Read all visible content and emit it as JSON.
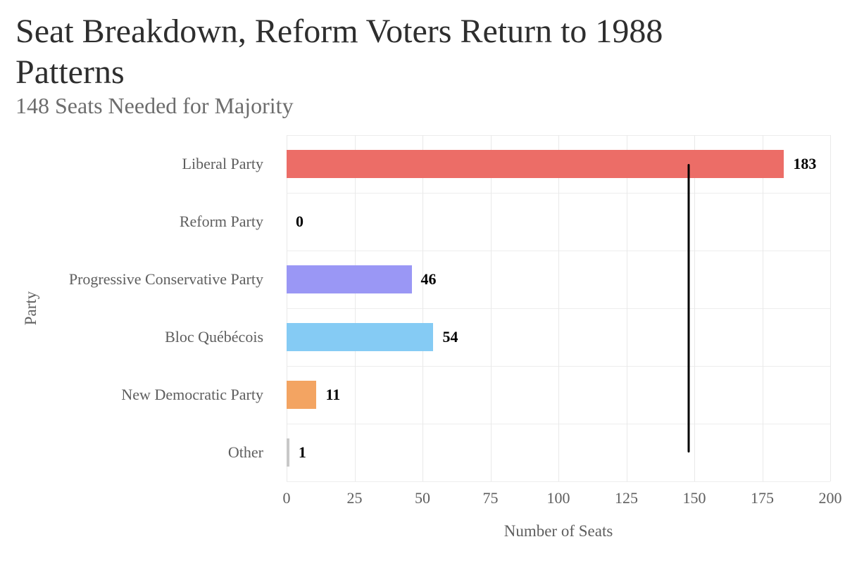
{
  "chart_data": {
    "type": "bar",
    "orientation": "horizontal",
    "title": "Seat Breakdown, Reform Voters Return to 1988 Patterns",
    "subtitle": "148 Seats Needed for Majority",
    "xlabel": "Number of Seats",
    "ylabel": "Party",
    "categories": [
      "Liberal Party",
      "Reform Party",
      "Progressive Conservative Party",
      "Bloc Québécois",
      "New Democratic Party",
      "Other"
    ],
    "values": [
      183,
      0,
      46,
      54,
      11,
      1
    ],
    "value_labels": [
      "183",
      "0",
      "46",
      "54",
      "11",
      "1"
    ],
    "bar_colors": [
      "#ec6d67",
      null,
      "#9a97f5",
      "#85cbf4",
      "#f3a462",
      "#c8c8c8"
    ],
    "xlim": [
      0,
      200
    ],
    "xticks": [
      0,
      25,
      50,
      75,
      100,
      125,
      150,
      175,
      200
    ],
    "majority_line": 148,
    "grid": true,
    "legend": false,
    "colors": {
      "gridline": "#e9e9e9",
      "row_gridline": "#ededed",
      "majority_line": "#000000",
      "value_label": "#000000",
      "axis_text": "#5e5e5e",
      "title_text": "#2e2e2e",
      "subtitle_text": "#6d6d6d",
      "background": "#ffffff"
    }
  }
}
